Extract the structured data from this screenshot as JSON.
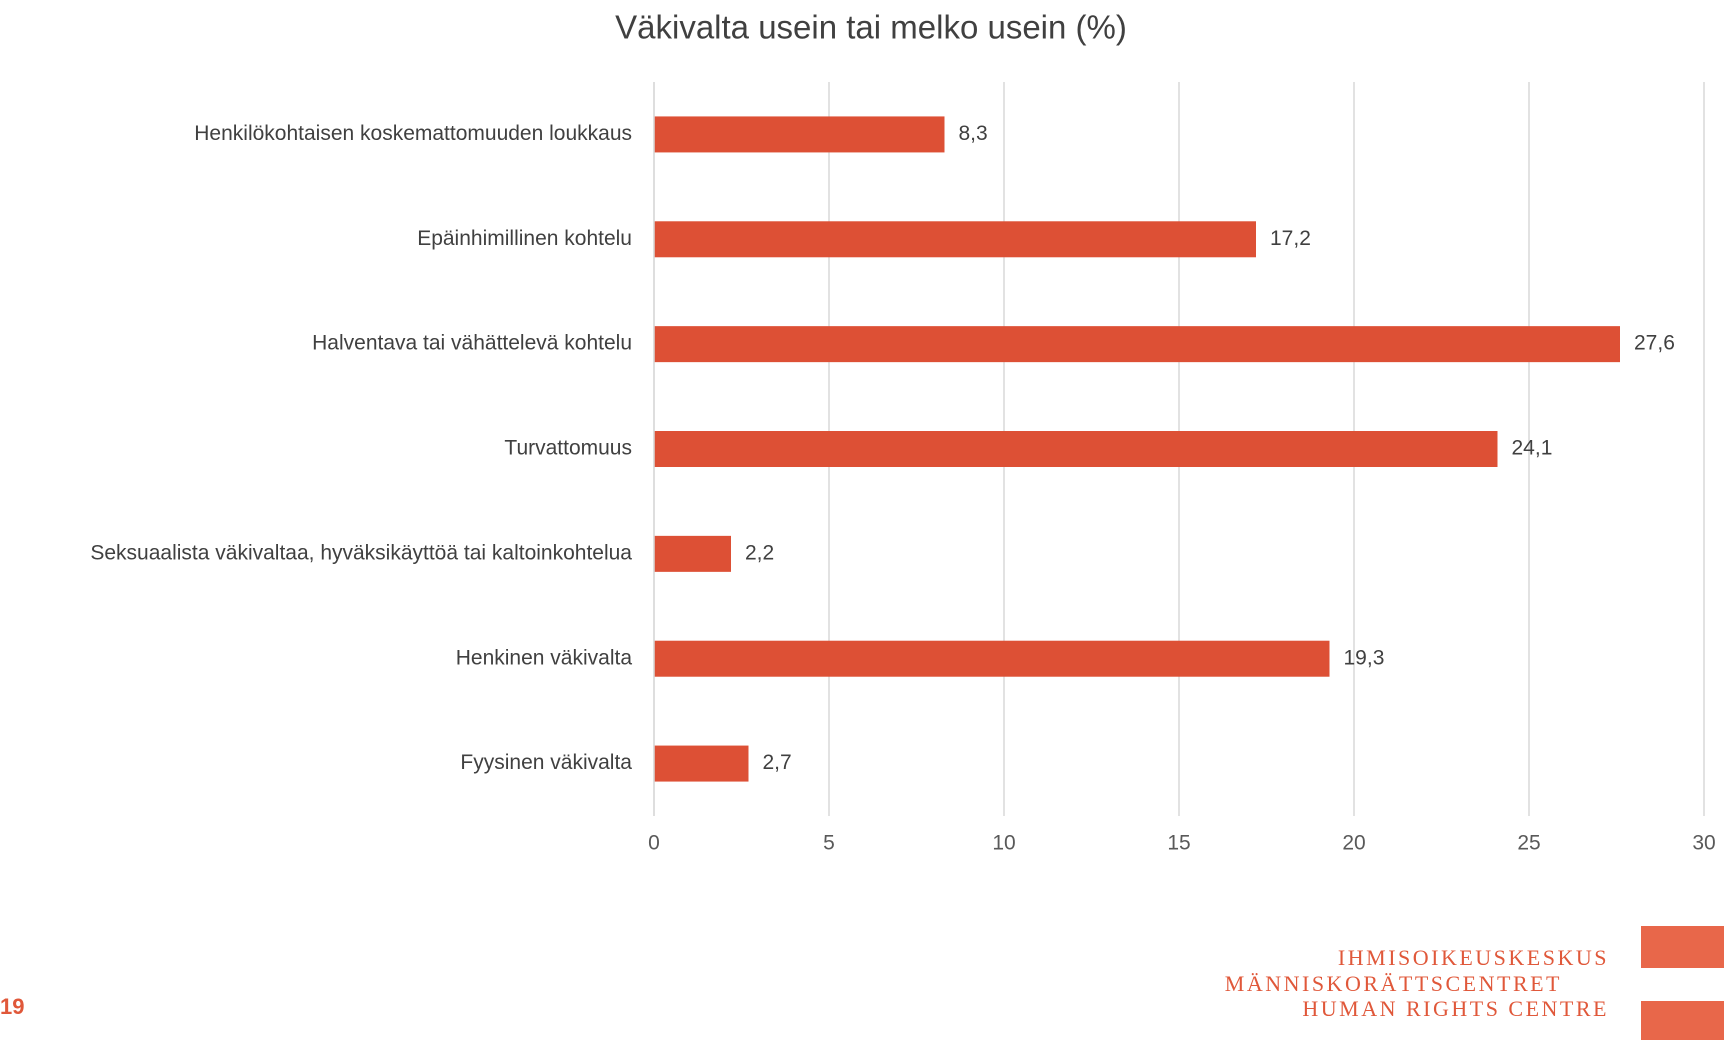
{
  "chart_data": {
    "type": "bar",
    "orientation": "horizontal",
    "title": "Väkivalta usein tai melko usein (%)",
    "categories": [
      "Henkilökohtaisen koskemattomuuden loukkaus",
      "Epäinhimillinen kohtelu",
      "Halventava tai vähättelevä kohtelu",
      "Turvattomuus",
      "Seksuaalista väkivaltaa, hyväksikäyttöä tai kaltoinkohtelua",
      "Henkinen väkivalta",
      "Fyysinen väkivalta"
    ],
    "values": [
      8.3,
      17.2,
      27.6,
      24.1,
      2.2,
      19.3,
      2.7
    ],
    "value_labels": [
      "8,3",
      "17,2",
      "27,6",
      "24,1",
      "2,2",
      "19,3",
      "2,7"
    ],
    "color": "#dd5035",
    "xlim": [
      0,
      30
    ],
    "xticks": [
      0,
      5,
      10,
      15,
      20,
      25,
      30
    ],
    "grid": true
  },
  "footer": {
    "page_number": "19",
    "logo": [
      "IHMISOIKEUSKESKUS",
      "MÄNNISKORÄTTSCENTRET",
      "HUMAN RIGHTS CENTRE"
    ]
  }
}
